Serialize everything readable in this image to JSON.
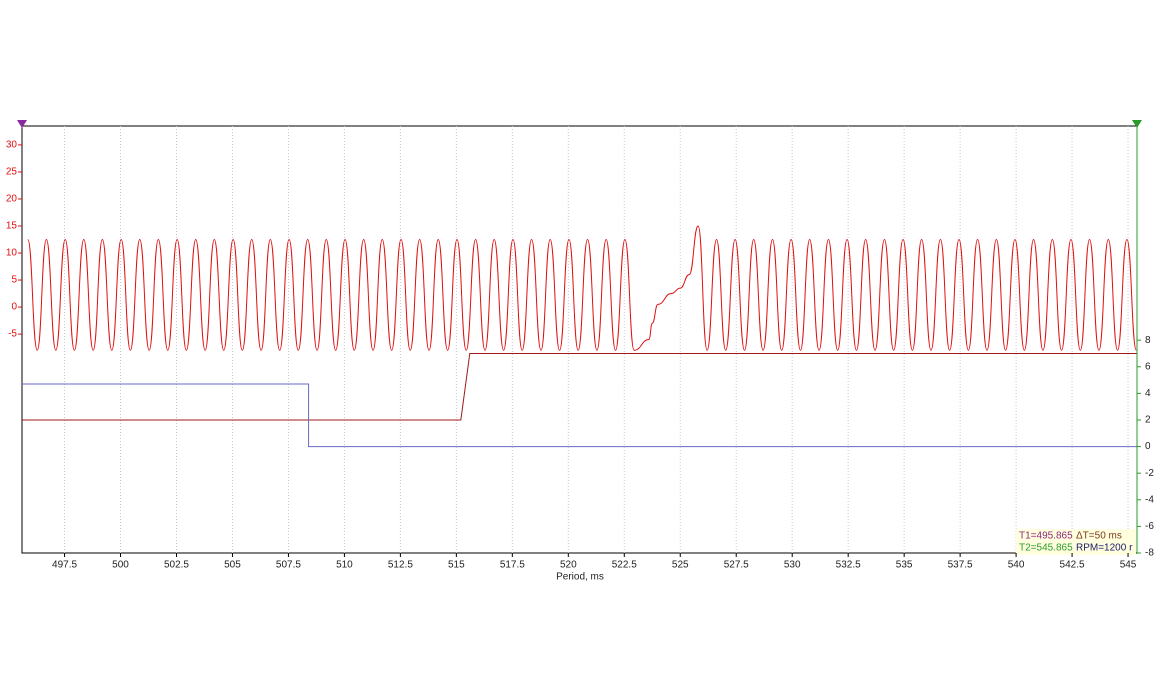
{
  "chart_data": {
    "type": "line",
    "x_label": "Period, ms",
    "xlim": [
      495.6,
      545.4
    ],
    "xticks": [
      497.5,
      500,
      502.5,
      505,
      507.5,
      510,
      512.5,
      515,
      517.5,
      520,
      522.5,
      525,
      527.5,
      530,
      532.5,
      535,
      537.5,
      540,
      542.5,
      545
    ],
    "ylim": [
      -45.5,
      33.5
    ],
    "yticks": [
      -5,
      0,
      5,
      10,
      15,
      20,
      25,
      30
    ],
    "y2lim": [
      -8,
      24.1
    ],
    "y2ticks": [
      -8,
      -6,
      -4,
      -2,
      0,
      2,
      4,
      6,
      8
    ],
    "grid": true,
    "series": [
      {
        "color": "#e01010",
        "interpolation": "smooth",
        "x": [
          495.86,
          496.28,
          496.69,
          497.11,
          497.53,
          497.94,
          498.36,
          498.78,
          499.19,
          499.61,
          500.03,
          500.44,
          500.86,
          501.28,
          501.69,
          502.11,
          502.53,
          502.94,
          503.36,
          503.78,
          504.19,
          504.61,
          505.03,
          505.44,
          505.86,
          506.28,
          506.69,
          507.11,
          507.53,
          507.94,
          508.36,
          508.78,
          509.19,
          509.61,
          510.03,
          510.44,
          510.86,
          511.28,
          511.69,
          512.11,
          512.53,
          512.94,
          513.36,
          513.78,
          514.19,
          514.61,
          515.03,
          515.44,
          515.86,
          516.28,
          516.69,
          517.11,
          517.53,
          517.94,
          518.36,
          518.78,
          519.19,
          519.61,
          520.03,
          520.44,
          520.86,
          521.28,
          521.69,
          522.11,
          522.53,
          522.94,
          523.6,
          523.75,
          524.0,
          524.6,
          525.0,
          525.4,
          525.8,
          526.2,
          526.62,
          527.03,
          527.45,
          527.87,
          528.28,
          528.7,
          529.12,
          529.53,
          529.95,
          530.37,
          530.78,
          531.2,
          531.62,
          532.03,
          532.45,
          532.87,
          533.28,
          533.7,
          534.12,
          534.53,
          534.95,
          535.37,
          535.78,
          536.2,
          536.62,
          537.03,
          537.45,
          537.87,
          538.28,
          538.7,
          539.12,
          539.53,
          539.95,
          540.37,
          540.78,
          541.2,
          541.62,
          542.03,
          542.45,
          542.87,
          543.28,
          543.7,
          544.12,
          544.53,
          544.95,
          545.37
        ],
        "values": [
          12.5,
          -8,
          12.5,
          -8,
          12.5,
          -8,
          12.5,
          -8,
          12.5,
          -8,
          12.5,
          -8,
          12.5,
          -8,
          12.5,
          -8,
          12.5,
          -8,
          12.5,
          -8,
          12.5,
          -8,
          12.5,
          -8,
          12.5,
          -8,
          12.5,
          -8,
          12.5,
          -8,
          12.5,
          -8,
          12.5,
          -8,
          12.5,
          -8,
          12.5,
          -8,
          12.5,
          -8,
          12.5,
          -8,
          12.5,
          -8,
          12.5,
          -8,
          12.5,
          -8,
          12.5,
          -8,
          12.5,
          -8,
          12.5,
          -8,
          12.5,
          -8,
          12.5,
          -8,
          12.5,
          -8,
          12.5,
          -8,
          12.5,
          -8,
          12.5,
          -8,
          -6,
          -3,
          0.5,
          2.5,
          3.5,
          6,
          15,
          -8,
          12.5,
          -8,
          12.5,
          -8,
          12.5,
          -8,
          12.5,
          -8,
          12.5,
          -8,
          12.5,
          -8,
          12.5,
          -8,
          12.5,
          -8,
          12.5,
          -8,
          12.5,
          -8,
          12.5,
          -8,
          12.5,
          -8,
          12.5,
          -8,
          12.5,
          -8,
          12.5,
          -8,
          12.5,
          -8,
          12.5,
          -8,
          12.5,
          -8,
          12.5,
          -8,
          12.5,
          -8,
          12.5,
          -8,
          12.5,
          -8,
          12.5,
          -8
        ]
      },
      {
        "color": "#a01818",
        "interpolation": "linear",
        "axis": "y2",
        "x": [
          495.6,
          515.2,
          515.6,
          545.4
        ],
        "values": [
          2,
          2,
          7,
          7
        ]
      },
      {
        "color": "#6a6ac8",
        "interpolation": "linear",
        "axis": "y2",
        "x": [
          495.6,
          508.4,
          508.4,
          545.4
        ],
        "values": [
          4.7,
          4.7,
          0,
          0
        ]
      }
    ],
    "cursor_labels": [
      "T1=495.865",
      "ΔT=50 ms",
      "T2=545.865",
      "RPM=1200 r"
    ]
  }
}
